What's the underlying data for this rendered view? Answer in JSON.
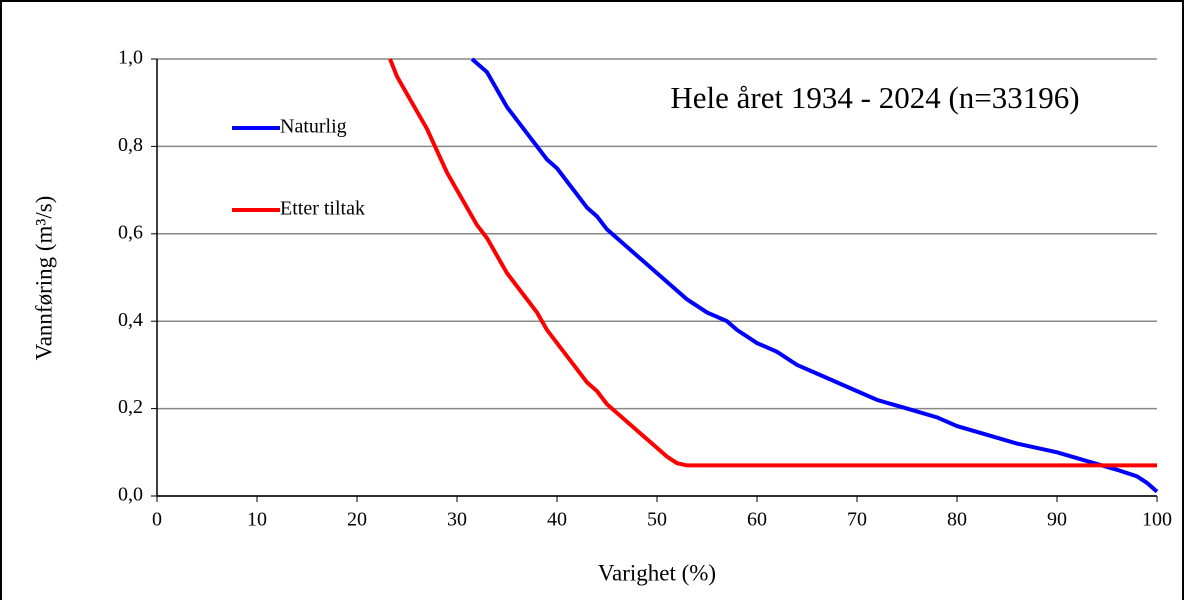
{
  "chart_data": {
    "type": "line",
    "title": "Hele året 1934 - 2024 (n=33196)",
    "x_label": "Varighet (%)",
    "y_label": "Vannføring (m³/s)",
    "series": [
      {
        "name": "Naturlig",
        "color": "#0000ff",
        "x": [
          31.5,
          33,
          34,
          35,
          36,
          37,
          38,
          39,
          40,
          41,
          42,
          43,
          44,
          45,
          46,
          47,
          48,
          49,
          50,
          51,
          52,
          53,
          55,
          57,
          58,
          60,
          62,
          64,
          66,
          68,
          70,
          72,
          75,
          78,
          80,
          83,
          86,
          90,
          93,
          96,
          98,
          99,
          100
        ],
        "values": [
          1.0,
          0.97,
          0.93,
          0.89,
          0.86,
          0.83,
          0.8,
          0.77,
          0.75,
          0.72,
          0.69,
          0.66,
          0.64,
          0.61,
          0.59,
          0.57,
          0.55,
          0.53,
          0.51,
          0.49,
          0.47,
          0.45,
          0.42,
          0.4,
          0.38,
          0.35,
          0.33,
          0.3,
          0.28,
          0.26,
          0.24,
          0.22,
          0.2,
          0.18,
          0.16,
          0.14,
          0.12,
          0.1,
          0.08,
          0.06,
          0.045,
          0.03,
          0.01
        ]
      },
      {
        "name": "Etter tiltak",
        "color": "#ff0000",
        "x": [
          23.3,
          24,
          25,
          26,
          27,
          28,
          29,
          30,
          31,
          32,
          33,
          34,
          35,
          36,
          37,
          38,
          39,
          40,
          41,
          42,
          43,
          44,
          45,
          46,
          47,
          48,
          49,
          50,
          51,
          52,
          53,
          100
        ],
        "values": [
          1.0,
          0.96,
          0.92,
          0.88,
          0.84,
          0.79,
          0.74,
          0.7,
          0.66,
          0.62,
          0.59,
          0.55,
          0.51,
          0.48,
          0.45,
          0.42,
          0.38,
          0.35,
          0.32,
          0.29,
          0.26,
          0.24,
          0.21,
          0.19,
          0.17,
          0.15,
          0.13,
          0.11,
          0.09,
          0.075,
          0.07,
          0.07
        ]
      }
    ],
    "xlim": [
      0,
      100
    ],
    "xticks": [
      0,
      10,
      20,
      30,
      40,
      50,
      60,
      70,
      80,
      90,
      100
    ],
    "ylim": [
      0,
      1
    ],
    "yticks": [
      {
        "value": 0,
        "label": "0,0"
      },
      {
        "value": 0.2,
        "label": "0,2"
      },
      {
        "value": 0.4,
        "label": "0,4"
      },
      {
        "value": 0.6,
        "label": "0,6"
      },
      {
        "value": 0.8,
        "label": "0,8"
      },
      {
        "value": 1,
        "label": "1,0"
      }
    ],
    "grid": true,
    "legend": "upper left"
  }
}
